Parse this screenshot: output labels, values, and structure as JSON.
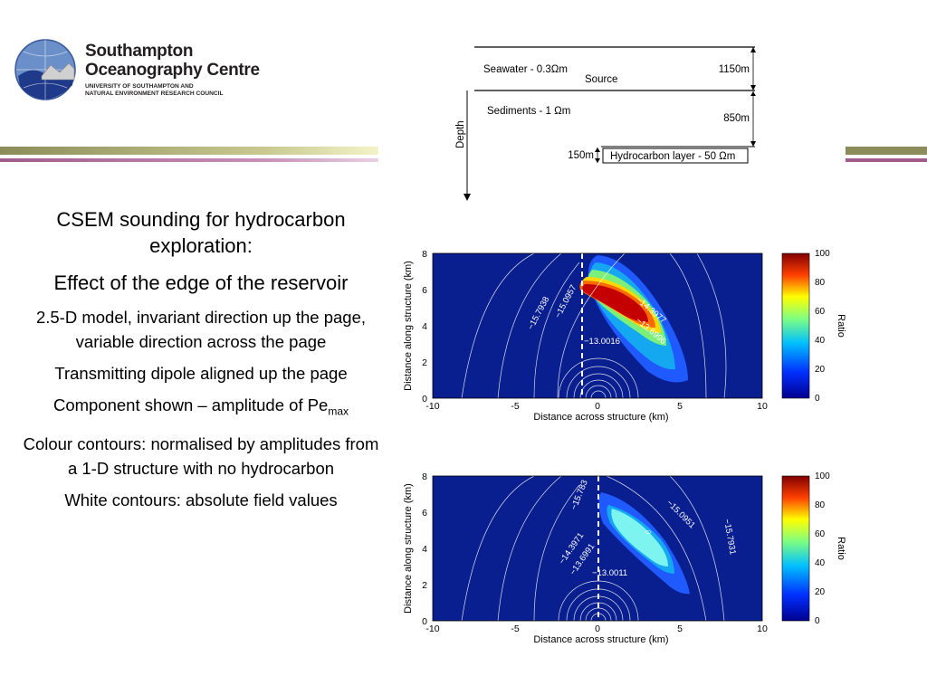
{
  "header": {
    "org_title_line1": "Southampton",
    "org_title_line2": "Oceanography Centre",
    "org_sub_line1": "UNIVERSITY OF SOUTHAMPTON AND",
    "org_sub_line2": "NATURAL ENVIRONMENT RESEARCH COUNCIL"
  },
  "colors": {
    "bar_olive": "#8c8c5a",
    "bar_mauve": "#a05c8c",
    "plot_background": "#0a1f8f"
  },
  "text": {
    "title_line1": "CSEM sounding for hydrocarbon",
    "title_line2": "exploration:",
    "subtitle": "Effect of the edge of the reservoir",
    "p1": "2.5-D model, invariant direction up the page, variable direction across the page",
    "p2": "Transmitting dipole aligned up the page",
    "p3_main": "Component shown – amplitude of Pe",
    "p3_sub": "max",
    "p4": "Colour contours: normalised by amplitudes from a 1-D structure with no hydrocarbon",
    "p5": "White contours: absolute field values"
  },
  "diagram": {
    "seawater": "Seawater - 0.3Ωm",
    "source": "Source",
    "depth_1150": "1150m",
    "sediments": "Sediments - 1 Ωm",
    "depth_850": "850m",
    "depth_label": "Depth",
    "layer_150": "150m",
    "hydrocarbon": "Hydrocarbon layer - 50 Ωm"
  },
  "chart_data": [
    {
      "type": "heatmap",
      "xlabel": "Distance across structure (km)",
      "ylabel": "Distance along structure (km)",
      "colorbar_label": "Ratio",
      "xlim": [
        -10,
        10
      ],
      "ylim": [
        0,
        8
      ],
      "x_ticks": [
        "-10",
        "-5",
        "0",
        "5",
        "10"
      ],
      "y_ticks": [
        "0",
        "2",
        "4",
        "6",
        "8"
      ],
      "colorbar_ticks": [
        "0",
        "20",
        "40",
        "60",
        "80",
        "100"
      ],
      "contour_labels": [
        "−15.7938",
        "−15.0957",
        "−13.0016",
        "−14.3977",
        "−13.6996"
      ],
      "edge_x": -1,
      "peak_center": [
        1.2,
        5.7
      ],
      "peak_ratio_max": 100
    },
    {
      "type": "heatmap",
      "xlabel": "Distance across structure (km)",
      "ylabel": "Distance along structure (km)",
      "colorbar_label": "Ratio",
      "xlim": [
        -10,
        10
      ],
      "ylim": [
        0,
        8
      ],
      "x_ticks": [
        "-10",
        "-5",
        "0",
        "5",
        "10"
      ],
      "y_ticks": [
        "0",
        "2",
        "4",
        "6",
        "8"
      ],
      "colorbar_ticks": [
        "0",
        "20",
        "40",
        "60",
        "80",
        "100"
      ],
      "contour_labels": [
        "−15.783",
        "−15.0951",
        "−15.7931",
        "−14.3971",
        "−13.6991",
        "−13.0011"
      ],
      "edge_x": 0,
      "peak_center": [
        3,
        5.2
      ],
      "peak_ratio_max": 55
    }
  ]
}
